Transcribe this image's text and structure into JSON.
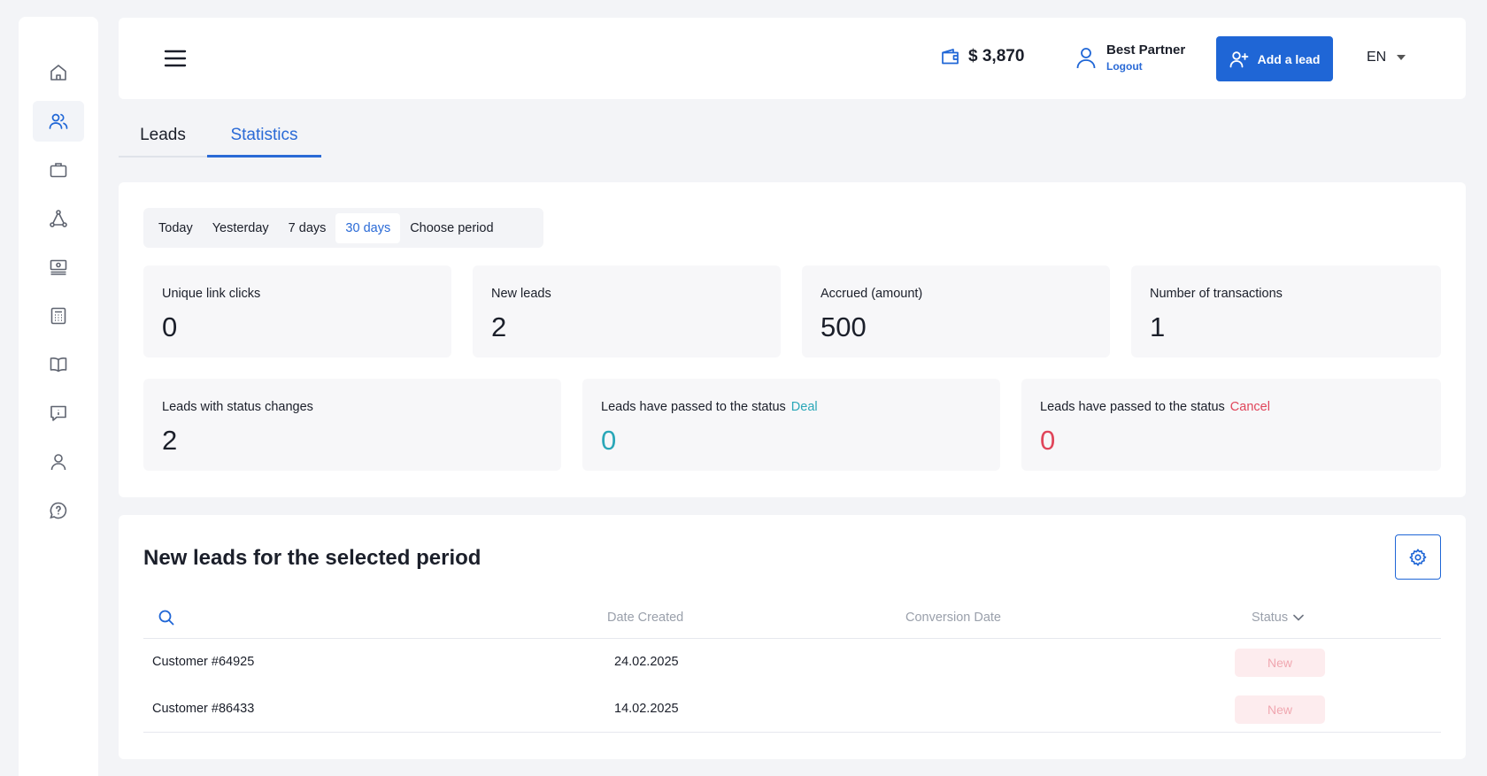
{
  "sidebar": {
    "items": [
      {
        "name": "home-icon"
      },
      {
        "name": "users-icon",
        "active": true
      },
      {
        "name": "briefcase-icon"
      },
      {
        "name": "network-icon"
      },
      {
        "name": "money-icon"
      },
      {
        "name": "calculator-icon"
      },
      {
        "name": "book-icon"
      },
      {
        "name": "info-icon"
      },
      {
        "name": "profile-icon"
      },
      {
        "name": "help-icon"
      }
    ]
  },
  "header": {
    "balance": "$ 3,870",
    "user_name": "Best Partner",
    "logout_label": "Logout",
    "add_lead_label": "Add a lead",
    "language": "EN"
  },
  "tabs": [
    {
      "label": "Leads"
    },
    {
      "label": "Statistics",
      "active": true
    }
  ],
  "periods": [
    {
      "label": "Today"
    },
    {
      "label": "Yesterday"
    },
    {
      "label": "7 days"
    },
    {
      "label": "30 days",
      "active": true
    },
    {
      "label": "Choose period"
    }
  ],
  "stats": {
    "unique_clicks": {
      "label": "Unique link clicks",
      "value": "0"
    },
    "new_leads": {
      "label": "New leads",
      "value": "2"
    },
    "accrued": {
      "label": "Accrued (amount)",
      "value": "500"
    },
    "transactions": {
      "label": "Number of transactions",
      "value": "1"
    },
    "status_changes": {
      "label": "Leads with status changes",
      "value": "2"
    },
    "passed_deal": {
      "label": "Leads have passed to the status",
      "status": "Deal",
      "value": "0"
    },
    "passed_cancel": {
      "label": "Leads have passed to the status",
      "status": "Cancel",
      "value": "0"
    }
  },
  "leads_table": {
    "title": "New leads for the selected period",
    "columns": {
      "date_created": "Date Created",
      "conversion_date": "Conversion Date",
      "status": "Status"
    },
    "rows": [
      {
        "customer": "Customer #64925",
        "date_created": "24.02.2025",
        "conversion_date": "",
        "status": "New"
      },
      {
        "customer": "Customer #86433",
        "date_created": "14.02.2025",
        "conversion_date": "",
        "status": "New"
      }
    ]
  },
  "colors": {
    "accent": "#1f66d6",
    "deal": "#2aa7b8",
    "cancel": "#e0455a"
  }
}
